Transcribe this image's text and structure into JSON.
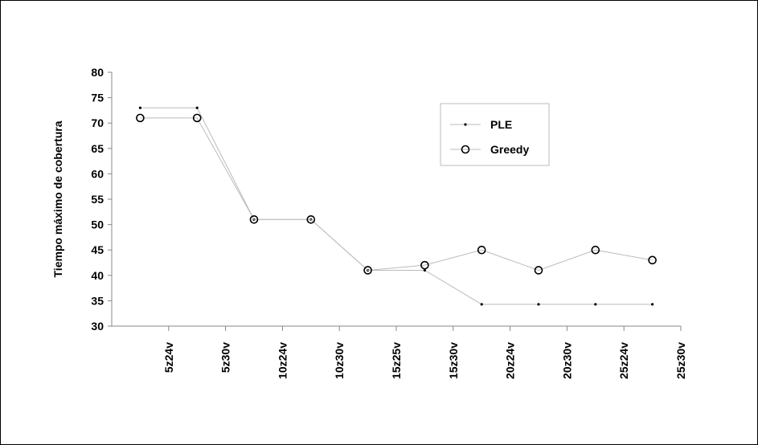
{
  "chart_data": {
    "type": "line",
    "title": "",
    "xlabel": "",
    "ylabel": "Tiempo máximo de cobertura",
    "ylim": [
      30,
      80
    ],
    "yticks": [
      30,
      35,
      40,
      45,
      50,
      55,
      60,
      65,
      70,
      75,
      80
    ],
    "categories": [
      "5z24v",
      "5z30v",
      "10z24v",
      "10z30v",
      "15z25v",
      "15z30v",
      "20z24v",
      "20z30v",
      "25z24v",
      "25z30v"
    ],
    "series": [
      {
        "name": "PLE",
        "marker": "dot",
        "color": "#000000",
        "line_color": "#bbbbbb",
        "values": [
          73,
          73,
          51,
          51,
          41,
          41,
          34.3,
          34.3,
          34.3,
          34.3
        ]
      },
      {
        "name": "Greedy",
        "marker": "circle",
        "color": "#000000",
        "line_color": "#bbbbbb",
        "values": [
          71,
          71,
          51,
          51,
          41,
          42,
          45,
          41,
          45,
          43
        ]
      }
    ],
    "legend_position": "top-right",
    "grid": false
  }
}
